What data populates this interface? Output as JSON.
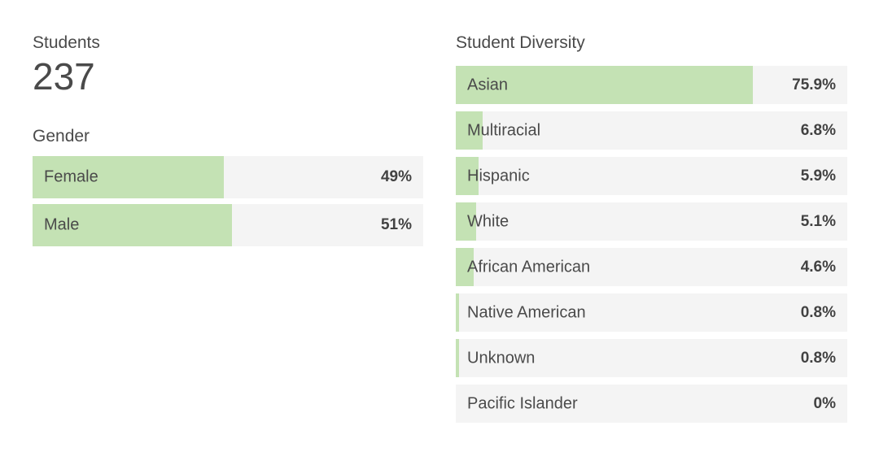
{
  "colors": {
    "bar_fill": "#c4e2b4",
    "bar_track": "#f4f4f4",
    "text": "#4a4a4a",
    "value_text": "#424242",
    "page_background": "#ffffff"
  },
  "students": {
    "label": "Students",
    "value": "237"
  },
  "chart_data": [
    {
      "type": "bar",
      "orientation": "horizontal",
      "title": "Gender",
      "categories": [
        "Female",
        "Male"
      ],
      "values": [
        49,
        51
      ],
      "value_labels": [
        "49%",
        "51%"
      ],
      "xlim": [
        0,
        100
      ],
      "grid": false,
      "legend": "none"
    },
    {
      "type": "bar",
      "orientation": "horizontal",
      "title": "Student Diversity",
      "categories": [
        "Asian",
        "Multiracial",
        "Hispanic",
        "White",
        "African American",
        "Native American",
        "Unknown",
        "Pacific Islander"
      ],
      "values": [
        75.9,
        6.8,
        5.9,
        5.1,
        4.6,
        0.8,
        0.8,
        0
      ],
      "value_labels": [
        "75.9%",
        "6.8%",
        "5.9%",
        "5.1%",
        "4.6%",
        "0.8%",
        "0.8%",
        "0%"
      ],
      "xlim": [
        0,
        100
      ],
      "grid": false,
      "legend": "none"
    }
  ]
}
